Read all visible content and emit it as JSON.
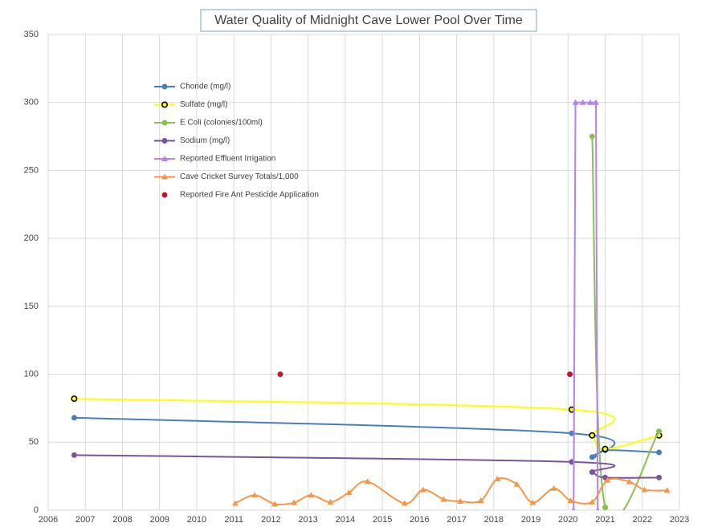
{
  "chart_data": {
    "type": "line",
    "title": "Water Quality of Midnight Cave Lower Pool Over Time",
    "xlim": [
      2006,
      2023
    ],
    "xticks": [
      2006,
      2007,
      2008,
      2009,
      2010,
      2011,
      2012,
      2013,
      2014,
      2015,
      2016,
      2017,
      2018,
      2019,
      2020,
      2021,
      2022,
      2023
    ],
    "ylim": [
      0,
      350
    ],
    "yticks": [
      0,
      50,
      100,
      150,
      200,
      250,
      300,
      350
    ],
    "grid": true,
    "series": [
      {
        "name": "Choride (mg/l)",
        "color": "#4a7ebb",
        "marker": "circle",
        "smooth": true,
        "x": [
          2006.7,
          2020.1,
          2020.65,
          2021.0,
          2022.45
        ],
        "values": [
          68,
          56.5,
          39,
          44,
          42.5
        ]
      },
      {
        "name": "Sulfate (mg/l)",
        "color": "#ffff00",
        "marker": "ring",
        "smooth": true,
        "x": [
          2006.7,
          2020.1,
          2020.65,
          2021.0,
          2022.45
        ],
        "values": [
          82,
          74,
          55,
          45,
          55
        ]
      },
      {
        "name": "E Coli (colonies/100ml)",
        "color": "#8cbf4f",
        "marker": "circle",
        "smooth": true,
        "x": [
          2020.65,
          2021.0,
          2022.45
        ],
        "values": [
          275,
          2,
          58
        ]
      },
      {
        "name": "Sodium (mg/l)",
        "color": "#7a5597",
        "marker": "circle",
        "smooth": true,
        "x": [
          2006.7,
          2020.1,
          2020.65,
          2021.0,
          2022.45
        ],
        "values": [
          40.5,
          35.5,
          28,
          24,
          24
        ]
      },
      {
        "name": "Reported Effluent Irrigation",
        "color": "#b681f0",
        "marker": "triangle",
        "smooth": false,
        "x": [
          2020.15,
          2020.2,
          2020.4,
          2020.6,
          2020.75,
          2020.8
        ],
        "values": [
          0,
          300,
          300,
          300,
          300,
          0
        ]
      },
      {
        "name": "Cave Cricket Survey Totals/1,000",
        "color": "#f79646",
        "marker": "triangle",
        "smooth": true,
        "x": [
          2011.04,
          2011.56,
          2012.1,
          2012.62,
          2013.08,
          2013.6,
          2014.1,
          2014.6,
          2015.6,
          2016.1,
          2016.65,
          2017.1,
          2017.65,
          2018.1,
          2018.62,
          2019.05,
          2019.62,
          2020.07,
          2020.65,
          2021.06,
          2021.65,
          2022.06,
          2022.67
        ],
        "values": [
          5,
          11,
          4.5,
          5.5,
          11,
          6,
          13,
          21,
          5,
          15,
          8,
          6.5,
          7,
          23,
          19,
          5.5,
          16,
          7,
          6,
          22,
          21,
          15,
          14.5
        ]
      },
      {
        "name": "Reported Fire Ant Pesticide Application",
        "color": "#c0182a",
        "marker": "circle",
        "smooth": false,
        "line": false,
        "x": [
          2012.25,
          2020.05
        ],
        "values": [
          100,
          100
        ]
      }
    ]
  }
}
